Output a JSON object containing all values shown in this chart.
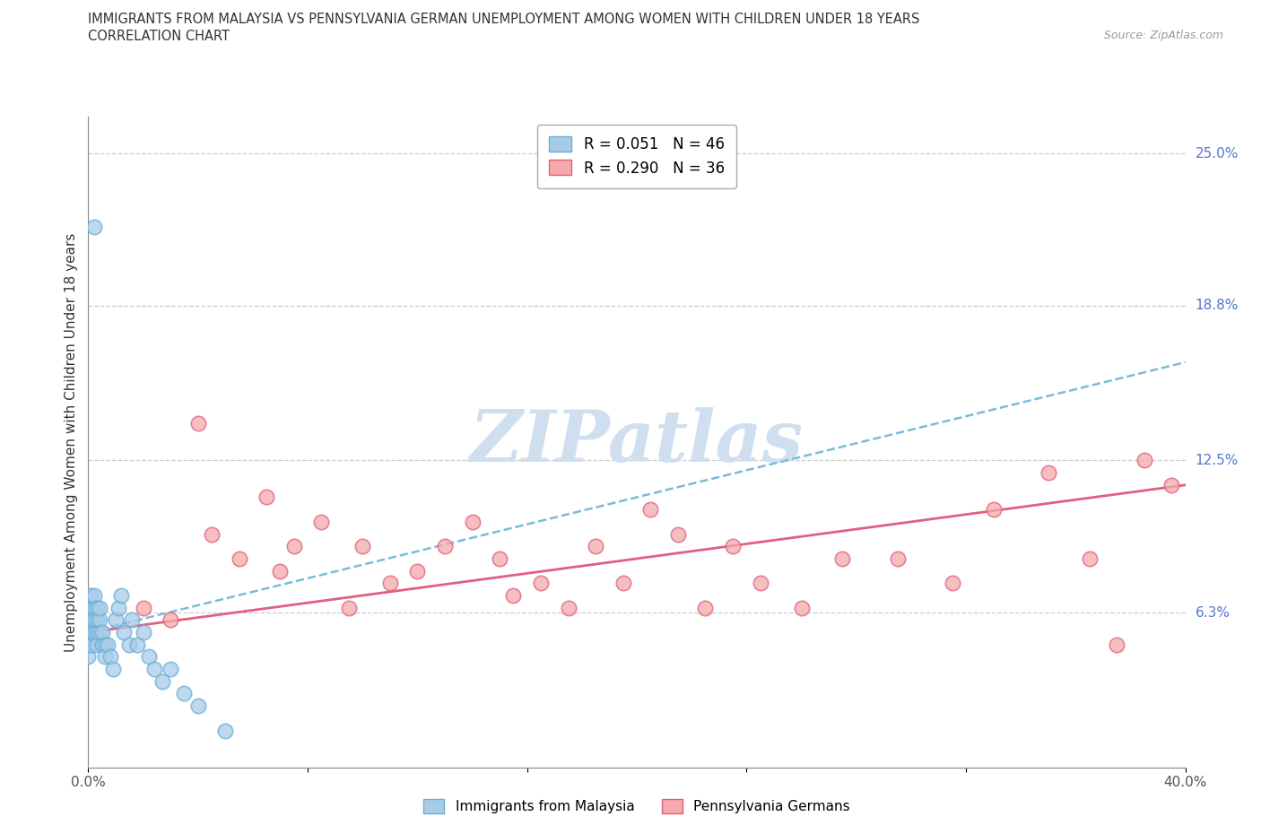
{
  "title_line1": "IMMIGRANTS FROM MALAYSIA VS PENNSYLVANIA GERMAN UNEMPLOYMENT AMONG WOMEN WITH CHILDREN UNDER 18 YEARS",
  "title_line2": "CORRELATION CHART",
  "source": "Source: ZipAtlas.com",
  "xlabel": "",
  "ylabel": "Unemployment Among Women with Children Under 18 years",
  "xlim": [
    0.0,
    0.4
  ],
  "ylim": [
    0.0,
    0.265
  ],
  "ytick_labels_right": [
    "6.3%",
    "12.5%",
    "18.8%",
    "25.0%"
  ],
  "ytick_vals_right": [
    0.063,
    0.125,
    0.188,
    0.25
  ],
  "R_malaysia": 0.051,
  "N_malaysia": 46,
  "R_penn": 0.29,
  "N_penn": 36,
  "color_malaysia_fill": "#A8CCE8",
  "color_malaysia_edge": "#6AAED6",
  "color_penn_fill": "#F4AAAA",
  "color_penn_edge": "#E06080",
  "color_malaysia_line": "#7BBCD6",
  "color_penn_line": "#E06080",
  "watermark": "ZIPatlas",
  "watermark_color": "#D0DFF0",
  "malaysia_x": [
    0.0,
    0.0,
    0.0,
    0.0,
    0.0,
    0.001,
    0.001,
    0.001,
    0.001,
    0.001,
    0.001,
    0.001,
    0.002,
    0.002,
    0.002,
    0.002,
    0.003,
    0.003,
    0.003,
    0.003,
    0.004,
    0.004,
    0.004,
    0.005,
    0.005,
    0.006,
    0.006,
    0.007,
    0.008,
    0.009,
    0.01,
    0.011,
    0.012,
    0.013,
    0.015,
    0.016,
    0.018,
    0.02,
    0.022,
    0.024,
    0.027,
    0.03,
    0.035,
    0.04,
    0.05,
    0.002
  ],
  "malaysia_y": [
    0.05,
    0.055,
    0.06,
    0.065,
    0.045,
    0.055,
    0.06,
    0.065,
    0.07,
    0.05,
    0.055,
    0.06,
    0.055,
    0.06,
    0.065,
    0.07,
    0.055,
    0.06,
    0.065,
    0.05,
    0.055,
    0.06,
    0.065,
    0.05,
    0.055,
    0.05,
    0.045,
    0.05,
    0.045,
    0.04,
    0.06,
    0.065,
    0.07,
    0.055,
    0.05,
    0.06,
    0.05,
    0.055,
    0.045,
    0.04,
    0.035,
    0.04,
    0.03,
    0.025,
    0.015,
    0.22
  ],
  "penn_x": [
    0.02,
    0.03,
    0.04,
    0.045,
    0.055,
    0.065,
    0.07,
    0.075,
    0.085,
    0.095,
    0.1,
    0.11,
    0.12,
    0.13,
    0.14,
    0.15,
    0.155,
    0.165,
    0.175,
    0.185,
    0.195,
    0.205,
    0.215,
    0.225,
    0.235,
    0.245,
    0.26,
    0.275,
    0.295,
    0.315,
    0.33,
    0.35,
    0.365,
    0.375,
    0.385,
    0.395
  ],
  "penn_y": [
    0.065,
    0.06,
    0.14,
    0.095,
    0.085,
    0.11,
    0.08,
    0.09,
    0.1,
    0.065,
    0.09,
    0.075,
    0.08,
    0.09,
    0.1,
    0.085,
    0.07,
    0.075,
    0.065,
    0.09,
    0.075,
    0.105,
    0.095,
    0.065,
    0.09,
    0.075,
    0.065,
    0.085,
    0.085,
    0.075,
    0.105,
    0.12,
    0.085,
    0.05,
    0.125,
    0.115
  ]
}
